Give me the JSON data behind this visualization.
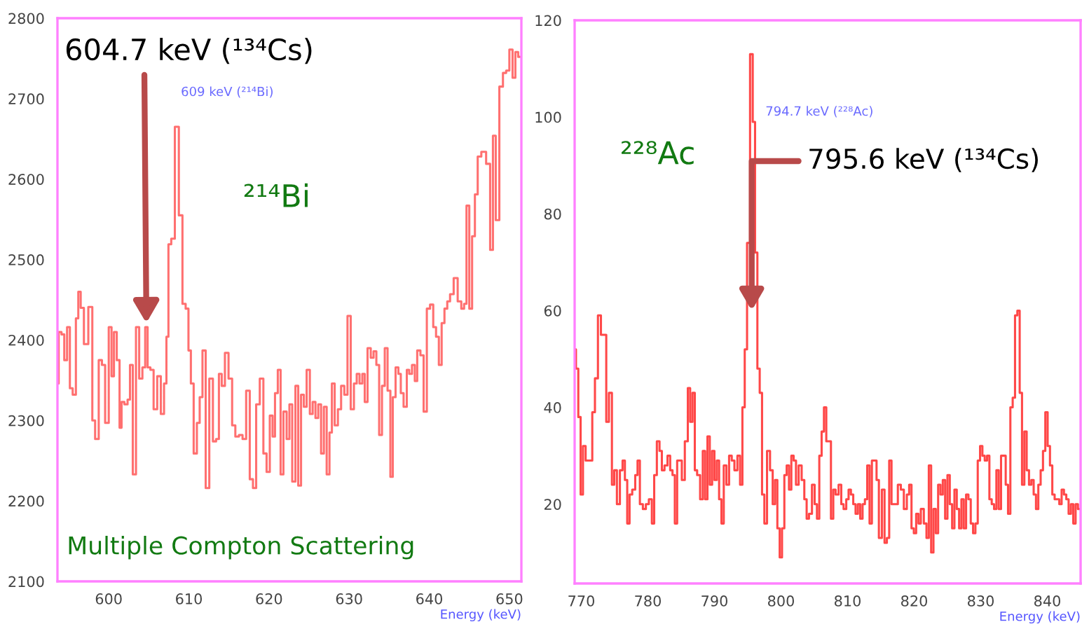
{
  "chart_data": [
    {
      "type": "step",
      "xlabel": "Energy (keV)",
      "annotations": [
        {
          "text": "604.7 keV (¹³⁴Cs)",
          "x": 604.7,
          "y": 2421
        },
        "609 keV (²¹⁴Bi)",
        "²¹⁴Bi",
        "Multiple Compton Scattering"
      ],
      "x": [
        593.6,
        593.9,
        594.3,
        594.6,
        595.0,
        595.3,
        595.7,
        596.1,
        596.3,
        596.7,
        597.1,
        597.8,
        598.1,
        598.5,
        599.0,
        599.3,
        599.8,
        600.2,
        600.5,
        600.8,
        601.2,
        601.5,
        601.7,
        602.2,
        602.5,
        602.8,
        603.2,
        603.6,
        604.0,
        604.4,
        604.7,
        605.0,
        605.4,
        605.8,
        606.3,
        606.7,
        607.1,
        607.3,
        607.6,
        608.0,
        608.5,
        609.0,
        609.4,
        609.8,
        610.1,
        610.4,
        610.8,
        611.2,
        611.5,
        611.9,
        612.3,
        612.8,
        613.2,
        613.6,
        613.9,
        614.3,
        614.7,
        615.2,
        615.6,
        616.0,
        616.5,
        616.9,
        617.4,
        617.8,
        618.2,
        618.6,
        619.1,
        619.5,
        619.9,
        620.3,
        620.6,
        620.9,
        621.3,
        621.6,
        622.0,
        622.4,
        622.7,
        623.1,
        623.5,
        623.8,
        624.2,
        624.5,
        624.9,
        625.3,
        625.6,
        626.0,
        626.3,
        626.7,
        627.0,
        627.4,
        627.7,
        628.0,
        628.4,
        628.8,
        629.2,
        629.6,
        630.0,
        630.4,
        630.8,
        631.1,
        631.5,
        631.8,
        632.1,
        632.5,
        632.9,
        633.2,
        633.6,
        633.9,
        634.3,
        634.6,
        635.0,
        635.3,
        635.6,
        636.0,
        636.3,
        636.6,
        637.0,
        637.4,
        637.6,
        638.1,
        638.3,
        638.7,
        639.1,
        639.5,
        639.9,
        640.3,
        640.7,
        641.0,
        641.4,
        641.7,
        642.1,
        642.4,
        642.8,
        643.3,
        643.8,
        644.2,
        644.5,
        644.8,
        645.2,
        645.5,
        645.9,
        646.2,
        646.8,
        647.4,
        647.8,
        648.1,
        648.5,
        649.0,
        649.4,
        649.8,
        650.2,
        650.6,
        650.9,
        651.3
      ],
      "series": [
        {
          "color": "#ff7070",
          "values": [
            2346,
            2410,
            2407,
            2375,
            2416,
            2340,
            2332,
            2427,
            2460,
            2440,
            2395,
            2441,
            2300,
            2277,
            2375,
            2369,
            2297,
            2416,
            2355,
            2410,
            2375,
            2291,
            2323,
            2320,
            2326,
            2369,
            2233,
            2416,
            2352,
            2366,
            2416,
            2366,
            2363,
            2314,
            2355,
            2308,
            2346,
            2404,
            2519,
            2526,
            2665,
            2555,
            2445,
            2439,
            2387,
            2346,
            2259,
            2297,
            2329,
            2387,
            2216,
            2352,
            2274,
            2277,
            2358,
            2343,
            2384,
            2352,
            2294,
            2280,
            2282,
            2277,
            2337,
            2227,
            2216,
            2320,
            2352,
            2259,
            2236,
            2306,
            2280,
            2334,
            2363,
            2233,
            2311,
            2277,
            2320,
            2224,
            2343,
            2219,
            2332,
            2317,
            2363,
            2308,
            2323,
            2303,
            2320,
            2259,
            2317,
            2233,
            2285,
            2346,
            2294,
            2314,
            2343,
            2332,
            2430,
            2314,
            2346,
            2358,
            2346,
            2358,
            2323,
            2390,
            2378,
            2386,
            2369,
            2282,
            2343,
            2390,
            2337,
            2230,
            2329,
            2366,
            2358,
            2334,
            2317,
            2363,
            2358,
            2369,
            2349,
            2387,
            2381,
            2311,
            2439,
            2444,
            2416,
            2404,
            2369,
            2421,
            2439,
            2448,
            2457,
            2477,
            2448,
            2439,
            2445,
            2567,
            2439,
            2529,
            2581,
            2628,
            2634,
            2619,
            2512,
            2654,
            2549,
            2715,
            2732,
            2735,
            2761,
            2726,
            2758,
            2752
          ]
        }
      ],
      "xlim": [
        593.6,
        651.5
      ],
      "ylim": [
        2100,
        2800
      ],
      "xticks": [
        600,
        610,
        620,
        630,
        640,
        650
      ],
      "yticks": [
        2100,
        2200,
        2300,
        2400,
        2500,
        2600,
        2700,
        2800
      ]
    },
    {
      "type": "step",
      "xlabel": "Energy (keV)",
      "annotations": [
        "²²⁸Ac",
        "794.7 keV (²²⁸Ac)",
        {
          "text": "795.6 keV (¹³⁴Cs)",
          "x": 795.6,
          "y": 60
        }
      ],
      "x": [
        769.0,
        769.4,
        769.7,
        770.1,
        770.4,
        770.9,
        771.5,
        771.8,
        772.3,
        772.7,
        773.2,
        773.6,
        773.9,
        774.4,
        774.8,
        775.1,
        775.6,
        776.0,
        776.4,
        776.7,
        777.1,
        777.4,
        777.9,
        778.3,
        778.6,
        779.0,
        779.5,
        779.9,
        780.4,
        780.8,
        781.1,
        781.6,
        781.9,
        782.3,
        782.7,
        783.2,
        783.5,
        783.9,
        784.2,
        784.6,
        784.9,
        785.3,
        785.8,
        786.2,
        786.5,
        786.9,
        787.2,
        787.6,
        788.1,
        788.4,
        788.8,
        789.1,
        789.5,
        789.8,
        790.2,
        790.5,
        790.9,
        791.2,
        791.6,
        792.0,
        792.4,
        792.8,
        793.2,
        793.7,
        794.0,
        794.4,
        794.7,
        795.1,
        795.6,
        795.9,
        796.3,
        796.6,
        797.0,
        797.3,
        797.7,
        798.1,
        798.6,
        798.9,
        799.3,
        799.6,
        800.0,
        800.3,
        800.7,
        801.0,
        801.4,
        801.7,
        802.1,
        802.4,
        802.9,
        803.3,
        803.7,
        804.0,
        804.4,
        804.9,
        805.2,
        805.6,
        805.9,
        806.3,
        806.6,
        807.0,
        807.3,
        807.7,
        808.0,
        808.4,
        808.9,
        809.2,
        809.6,
        810.0,
        810.3,
        810.7,
        811.0,
        811.4,
        811.7,
        812.1,
        812.4,
        812.8,
        813.1,
        813.5,
        813.8,
        814.2,
        814.5,
        814.9,
        815.4,
        815.7,
        816.1,
        816.4,
        816.8,
        817.3,
        817.8,
        818.2,
        818.7,
        819.1,
        819.4,
        819.8,
        820.1,
        820.5,
        820.8,
        821.2,
        821.7,
        822.0,
        822.4,
        822.7,
        823.1,
        823.4,
        823.8,
        824.1,
        824.5,
        824.8,
        825.2,
        825.5,
        825.9,
        826.2,
        826.6,
        826.9,
        827.3,
        827.6,
        828.0,
        828.3,
        828.7,
        829.0,
        829.4,
        829.7,
        830.1,
        830.4,
        830.8,
        831.1,
        831.5,
        831.8,
        832.2,
        832.5,
        832.9,
        833.2,
        833.6,
        833.9,
        834.3,
        834.6,
        835.0,
        835.3,
        835.7,
        836.0,
        836.4,
        836.7,
        837.1,
        837.4,
        837.8,
        838.1,
        838.5,
        838.8,
        839.2,
        839.5,
        839.9,
        840.2,
        840.6,
        840.9,
        841.3,
        841.6,
        842.0,
        842.3,
        842.7,
        843.0,
        843.4,
        843.7,
        844.1,
        844.4,
        844.8
      ],
      "series": [
        {
          "color": "#ff4848",
          "values": [
            52,
            48,
            38,
            22,
            32,
            29,
            29,
            39,
            46,
            59,
            55,
            55,
            37,
            43,
            24,
            27,
            20,
            27,
            29,
            25,
            16,
            22,
            23,
            26,
            29,
            20,
            19,
            20,
            21,
            16,
            26,
            33,
            31,
            27,
            28,
            30,
            27,
            26,
            16,
            29,
            29,
            25,
            33,
            44,
            37,
            43,
            27,
            26,
            21,
            31,
            21,
            34,
            24,
            31,
            25,
            29,
            21,
            16,
            28,
            24,
            30,
            29,
            27,
            30,
            24,
            40,
            52,
            74,
            113,
            99,
            72,
            48,
            43,
            22,
            16,
            31,
            27,
            20,
            25,
            15,
            9,
            15,
            26,
            28,
            23,
            30,
            29,
            24,
            28,
            25,
            21,
            17,
            18,
            24,
            20,
            17,
            30,
            35,
            40,
            33,
            33,
            17,
            23,
            22,
            24,
            20,
            19,
            21,
            23,
            22,
            20,
            18,
            20,
            17,
            20,
            21,
            28,
            16,
            29,
            29,
            25,
            13,
            23,
            12,
            13,
            29,
            20,
            20,
            24,
            23,
            19,
            22,
            24,
            15,
            14,
            18,
            16,
            19,
            16,
            13,
            28,
            10,
            19,
            14,
            24,
            22,
            25,
            17,
            26,
            20,
            15,
            23,
            19,
            15,
            21,
            15,
            22,
            21,
            16,
            14,
            16,
            29,
            32,
            30,
            29,
            30,
            21,
            20,
            19,
            27,
            19,
            30,
            30,
            24,
            18,
            40,
            42,
            59,
            60,
            43,
            24,
            35,
            27,
            24,
            25,
            22,
            19,
            24,
            27,
            31,
            39,
            32,
            28,
            22,
            21,
            21,
            20,
            23,
            22,
            21,
            18,
            20,
            16,
            20,
            19
          ]
        }
      ],
      "xlim": [
        769,
        845
      ],
      "ylim": [
        3.6,
        120
      ],
      "xticks": [
        770,
        780,
        790,
        800,
        810,
        820,
        830,
        840
      ],
      "yticks": [
        20,
        40,
        60,
        80,
        100,
        120
      ]
    }
  ]
}
